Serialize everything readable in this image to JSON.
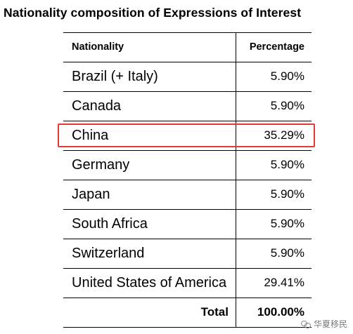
{
  "title": "Nationality composition of Expressions of Interest",
  "table": {
    "headers": [
      "Nationality",
      "Percentage"
    ],
    "rows": [
      {
        "nationality": "Brazil (+ Italy)",
        "percentage": "5.90%"
      },
      {
        "nationality": "Canada",
        "percentage": "5.90%"
      },
      {
        "nationality": "China",
        "percentage": "35.29%"
      },
      {
        "nationality": "Germany",
        "percentage": "5.90%"
      },
      {
        "nationality": "Japan",
        "percentage": "5.90%"
      },
      {
        "nationality": "South Africa",
        "percentage": "5.90%"
      },
      {
        "nationality": "Switzerland",
        "percentage": "5.90%"
      },
      {
        "nationality": "United States of America",
        "percentage": "29.41%"
      }
    ],
    "total": {
      "label": "Total",
      "percentage": "100.00%"
    },
    "highlighted_row": "China",
    "highlight_color": "#e53935"
  },
  "watermark": {
    "text": "华夏移民",
    "icon": "wechat-icon"
  }
}
